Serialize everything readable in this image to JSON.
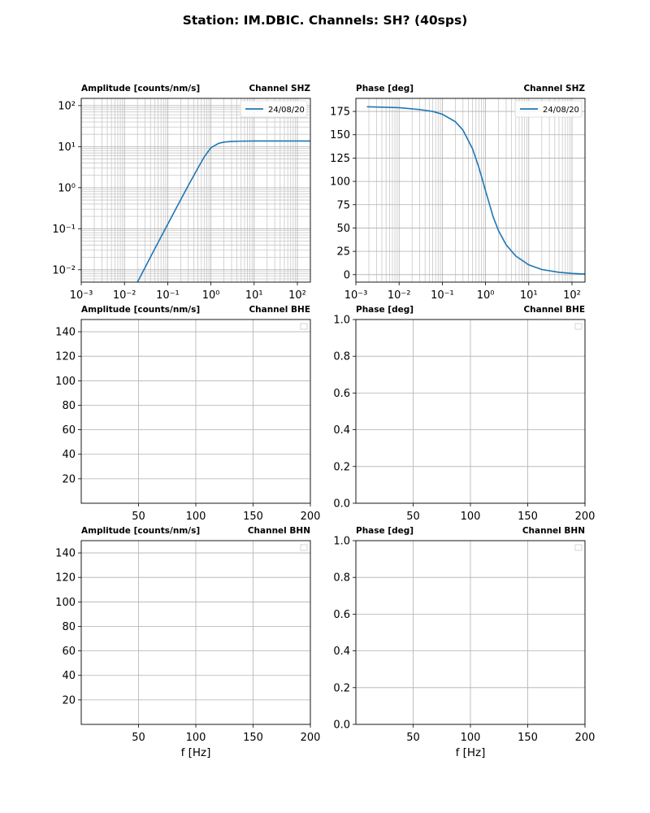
{
  "figure": {
    "suptitle": "Station: IM.DBIC. Channels: SH? (40sps)"
  },
  "chart_data": [
    {
      "type": "line",
      "xscale": "log",
      "yscale": "log",
      "title_left": "Amplitude [counts/nm/s]",
      "title_right": "Channel SHZ",
      "xlabel": "",
      "ylabel": "",
      "xlim": [
        0.001,
        200
      ],
      "ylim": [
        0.005,
        150
      ],
      "xticks": [
        0.001,
        0.01,
        0.1,
        1,
        10,
        100
      ],
      "xticklabels": [
        "10⁻³",
        "10⁻²",
        "10⁻¹",
        "10⁰",
        "10¹",
        "10²"
      ],
      "yticks": [
        0.01,
        0.1,
        1,
        10,
        100
      ],
      "yticklabels": [
        "10⁻²",
        "10⁻¹",
        "10⁰",
        "10¹",
        "10²"
      ],
      "grid": "both",
      "legend": "top-right",
      "series": [
        {
          "name": "24/08/20",
          "color": "#1f77b4",
          "x": [
            0.02,
            0.05,
            0.1,
            0.2,
            0.3,
            0.5,
            0.7,
            1.0,
            1.5,
            2,
            3,
            5,
            10,
            50,
            100,
            200
          ],
          "y": [
            0.005,
            0.032,
            0.128,
            0.51,
            1.13,
            3.0,
            5.6,
            9.4,
            12.0,
            12.9,
            13.4,
            13.6,
            13.7,
            13.7,
            13.7,
            13.7
          ]
        }
      ]
    },
    {
      "type": "line",
      "xscale": "log",
      "yscale": "linear",
      "title_left": "Phase [deg]",
      "title_right": "Channel SHZ",
      "xlabel": "",
      "ylabel": "",
      "xlim": [
        0.001,
        200
      ],
      "ylim": [
        -8,
        189
      ],
      "xticks": [
        0.001,
        0.01,
        0.1,
        1,
        10,
        100
      ],
      "xticklabels": [
        "10⁻³",
        "10⁻²",
        "10⁻¹",
        "10⁰",
        "10¹",
        "10²"
      ],
      "yticks": [
        0,
        25,
        50,
        75,
        100,
        125,
        150,
        175
      ],
      "yticklabels": [
        "0",
        "25",
        "50",
        "75",
        "100",
        "125",
        "150",
        "175"
      ],
      "grid": "both",
      "legend": "top-right",
      "series": [
        {
          "name": "24/08/20",
          "color": "#1f77b4",
          "x": [
            0.0018,
            0.005,
            0.01,
            0.03,
            0.06,
            0.1,
            0.2,
            0.3,
            0.5,
            0.7,
            1.0,
            1.5,
            2,
            3,
            5,
            10,
            20,
            50,
            100,
            200
          ],
          "y": [
            180,
            179.5,
            179,
            177,
            175,
            172,
            164,
            155,
            135,
            115,
            90,
            62,
            47,
            32,
            20,
            10.5,
            5.5,
            2.5,
            1.3,
            0.7
          ]
        }
      ]
    },
    {
      "type": "line",
      "xscale": "linear",
      "yscale": "linear",
      "title_left": "Amplitude [counts/nm/s]",
      "title_right": "Channel BHE",
      "xlabel": "",
      "ylabel": "",
      "xlim": [
        0,
        200
      ],
      "ylim": [
        0,
        150
      ],
      "xticks": [
        50,
        100,
        150,
        200
      ],
      "xticklabels": [
        "50",
        "100",
        "150",
        "200"
      ],
      "yticks": [
        20,
        40,
        60,
        80,
        100,
        120,
        140
      ],
      "yticklabels": [
        "20",
        "40",
        "60",
        "80",
        "100",
        "120",
        "140"
      ],
      "grid": "major",
      "legend": "top-right",
      "series": []
    },
    {
      "type": "line",
      "xscale": "linear",
      "yscale": "linear",
      "title_left": "Phase [deg]",
      "title_right": "Channel BHE",
      "xlabel": "",
      "ylabel": "",
      "xlim": [
        0,
        200
      ],
      "ylim": [
        0,
        1
      ],
      "xticks": [
        50,
        100,
        150,
        200
      ],
      "xticklabels": [
        "50",
        "100",
        "150",
        "200"
      ],
      "yticks": [
        0,
        0.2,
        0.4,
        0.6,
        0.8,
        1.0
      ],
      "yticklabels": [
        "0.0",
        "0.2",
        "0.4",
        "0.6",
        "0.8",
        "1.0"
      ],
      "grid": "major",
      "legend": "top-right",
      "series": []
    },
    {
      "type": "line",
      "xscale": "linear",
      "yscale": "linear",
      "title_left": "Amplitude [counts/nm/s]",
      "title_right": "Channel BHN",
      "xlabel": "f [Hz]",
      "ylabel": "",
      "xlim": [
        0,
        200
      ],
      "ylim": [
        0,
        150
      ],
      "xticks": [
        50,
        100,
        150,
        200
      ],
      "xticklabels": [
        "50",
        "100",
        "150",
        "200"
      ],
      "yticks": [
        20,
        40,
        60,
        80,
        100,
        120,
        140
      ],
      "yticklabels": [
        "20",
        "40",
        "60",
        "80",
        "100",
        "120",
        "140"
      ],
      "grid": "major",
      "legend": "top-right",
      "series": []
    },
    {
      "type": "line",
      "xscale": "linear",
      "yscale": "linear",
      "title_left": "Phase [deg]",
      "title_right": "Channel BHN",
      "xlabel": "f [Hz]",
      "ylabel": "",
      "xlim": [
        0,
        200
      ],
      "ylim": [
        0,
        1
      ],
      "xticks": [
        50,
        100,
        150,
        200
      ],
      "xticklabels": [
        "50",
        "100",
        "150",
        "200"
      ],
      "yticks": [
        0,
        0.2,
        0.4,
        0.6,
        0.8,
        1.0
      ],
      "yticklabels": [
        "0.0",
        "0.2",
        "0.4",
        "0.6",
        "0.8",
        "1.0"
      ],
      "grid": "major",
      "legend": "top-right",
      "series": []
    }
  ]
}
